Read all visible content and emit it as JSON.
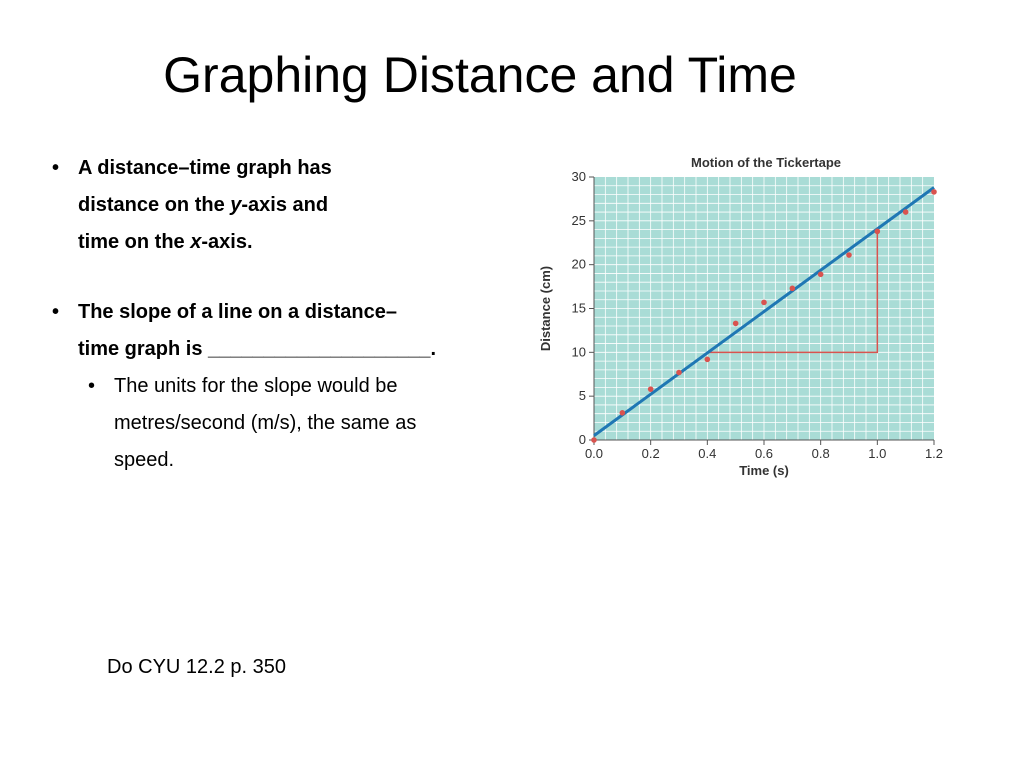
{
  "slide": {
    "title": "Graphing Distance and Time",
    "bullet1": {
      "l1": "A distance–time graph has",
      "l2a": "distance on the ",
      "l2b": "y",
      "l2c": "-axis and",
      "l3a": "time on the ",
      "l3b": "x",
      "l3c": "-axis."
    },
    "bullet2": {
      "l1": "The slope of a line on a distance–",
      "l2": "time graph is ____________________."
    },
    "subbullet": {
      "l1": "The units for the slope would be",
      "l2": "metres/second (m/s), the same as",
      "l3": "speed."
    },
    "bullet_char": "•",
    "footer": "Do CYU 12.2 p. 350"
  },
  "chart_data": {
    "type": "scatter",
    "title": "Motion of the Tickertape",
    "xlabel": "Time (s)",
    "ylabel": "Distance (cm)",
    "xlim": [
      0.0,
      1.2
    ],
    "ylim": [
      0,
      30
    ],
    "xticks": [
      "0.0",
      "0.2",
      "0.4",
      "0.6",
      "0.8",
      "1.0",
      "1.2"
    ],
    "yticks": [
      "0",
      "5",
      "10",
      "15",
      "20",
      "25",
      "30"
    ],
    "grid": true,
    "series": [
      {
        "x": [
          0.0,
          0.1,
          0.2,
          0.3,
          0.4,
          0.5,
          0.6,
          0.7,
          0.8,
          0.9,
          1.0,
          1.1,
          1.2
        ],
        "y": [
          0.0,
          3.1,
          5.8,
          7.7,
          9.2,
          13.3,
          15.7,
          17.3,
          18.9,
          21.1,
          23.8,
          26.0,
          28.3
        ],
        "color": "#d9534f"
      }
    ],
    "best_fit_line": {
      "x": [
        0.0,
        1.2
      ],
      "y": [
        0.5,
        28.8
      ],
      "color": "#1f77b4"
    },
    "slope_triangle": {
      "x": [
        0.4,
        1.0
      ],
      "y": [
        10.0,
        23.8
      ],
      "color": "#d9534f"
    },
    "colors": {
      "plot_bg": "#a9dcd6",
      "grid": "#ffffff"
    }
  }
}
